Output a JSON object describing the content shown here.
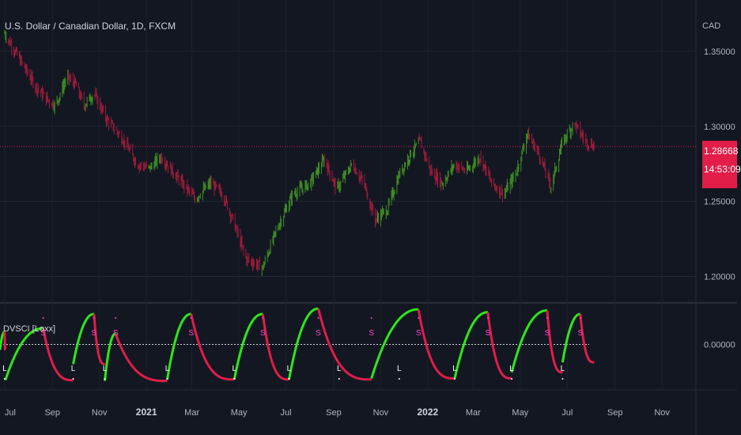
{
  "header": {
    "title": "U.S. Dollar / Canadian Dollar, 1D, FXCM",
    "currency": "CAD"
  },
  "indicator": {
    "title": "DVSCI [Loxx]"
  },
  "current_price": {
    "price": "1.28668",
    "countdown": "14:53:09"
  },
  "colors": {
    "bull": "#3f8f22",
    "bear": "#9c1c3a",
    "osc_bull": "#2ee61a",
    "osc_bear": "#e11d48",
    "signal_short": "#ff44cc",
    "signal_long": "#ffffff",
    "price_line": "#e11d48"
  },
  "chart_data": [
    {
      "type": "line",
      "title": "U.S. Dollar / Canadian Dollar, 1D, FXCM",
      "ylabel": "CAD",
      "ylim": [
        1.185,
        1.38
      ],
      "yticks": [
        "1.35000",
        "1.30000",
        "1.25000",
        "1.20000"
      ],
      "x_ticks": [
        {
          "label": "Jul",
          "bold": false
        },
        {
          "label": "Sep",
          "bold": false
        },
        {
          "label": "Nov",
          "bold": false
        },
        {
          "label": "2021",
          "bold": true
        },
        {
          "label": "Mar",
          "bold": false
        },
        {
          "label": "May",
          "bold": false
        },
        {
          "label": "Jul",
          "bold": false
        },
        {
          "label": "Sep",
          "bold": false
        },
        {
          "label": "Nov",
          "bold": false
        },
        {
          "label": "2022",
          "bold": true
        },
        {
          "label": "Mar",
          "bold": false
        },
        {
          "label": "May",
          "bold": false
        },
        {
          "label": "Jul",
          "bold": false
        },
        {
          "label": "Sep",
          "bold": false
        },
        {
          "label": "Nov",
          "bold": false
        }
      ],
      "price_path": [
        [
          "2020-07-01",
          1.362
        ],
        [
          "2020-07-20",
          1.345
        ],
        [
          "2020-08-10",
          1.327
        ],
        [
          "2020-08-25",
          1.318
        ],
        [
          "2020-09-05",
          1.314
        ],
        [
          "2020-09-20",
          1.333
        ],
        [
          "2020-10-01",
          1.328
        ],
        [
          "2020-10-12",
          1.314
        ],
        [
          "2020-10-25",
          1.322
        ],
        [
          "2020-11-10",
          1.305
        ],
        [
          "2020-12-01",
          1.292
        ],
        [
          "2020-12-20",
          1.275
        ],
        [
          "2021-01-05",
          1.272
        ],
        [
          "2021-01-20",
          1.28
        ],
        [
          "2021-02-10",
          1.266
        ],
        [
          "2021-03-05",
          1.252
        ],
        [
          "2021-03-25",
          1.262
        ],
        [
          "2021-04-10",
          1.255
        ],
        [
          "2021-04-25",
          1.235
        ],
        [
          "2021-05-10",
          1.212
        ],
        [
          "2021-06-01",
          1.206
        ],
        [
          "2021-06-18",
          1.23
        ],
        [
          "2021-07-10",
          1.255
        ],
        [
          "2021-08-01",
          1.262
        ],
        [
          "2021-08-20",
          1.278
        ],
        [
          "2021-09-05",
          1.258
        ],
        [
          "2021-09-25",
          1.275
        ],
        [
          "2021-10-10",
          1.262
        ],
        [
          "2021-10-25",
          1.238
        ],
        [
          "2021-11-10",
          1.245
        ],
        [
          "2021-11-25",
          1.268
        ],
        [
          "2021-12-10",
          1.282
        ],
        [
          "2021-12-22",
          1.29
        ],
        [
          "2022-01-05",
          1.27
        ],
        [
          "2022-01-20",
          1.262
        ],
        [
          "2022-02-05",
          1.275
        ],
        [
          "2022-02-20",
          1.27
        ],
        [
          "2022-03-10",
          1.28
        ],
        [
          "2022-03-25",
          1.262
        ],
        [
          "2022-04-10",
          1.255
        ],
        [
          "2022-04-25",
          1.268
        ],
        [
          "2022-05-10",
          1.295
        ],
        [
          "2022-05-25",
          1.282
        ],
        [
          "2022-06-10",
          1.26
        ],
        [
          "2022-06-25",
          1.29
        ],
        [
          "2022-07-10",
          1.302
        ],
        [
          "2022-07-25",
          1.29
        ],
        [
          "2022-08-05",
          1.287
        ]
      ],
      "last_price": 1.28668
    },
    {
      "type": "area",
      "title": "DVSCI [Loxx]",
      "ylim": [
        -1.25,
        1.05
      ],
      "yticks": [
        "0.00000"
      ],
      "zero_line": 0,
      "cycles": [
        {
          "start": "2020-06-25",
          "peak": "2020-07-01",
          "end": "2020-07-02",
          "peak_value": 0.35,
          "trough_value": -0.15
        },
        {
          "start": "2020-07-02",
          "peak": "2020-08-20",
          "end": "2020-09-28",
          "peak_value": 0.45,
          "trough_value": -1.0
        },
        {
          "start": "2020-09-28",
          "peak": "2020-10-25",
          "end": "2020-11-08",
          "peak_value": 0.85,
          "trough_value": -0.55
        },
        {
          "start": "2020-11-08",
          "peak": "2020-11-22",
          "end": "2021-01-28",
          "peak_value": 0.3,
          "trough_value": -1.02
        },
        {
          "start": "2021-01-28",
          "peak": "2021-02-28",
          "end": "2021-04-25",
          "peak_value": 0.85,
          "trough_value": -0.98
        },
        {
          "start": "2021-04-25",
          "peak": "2021-06-01",
          "end": "2021-07-05",
          "peak_value": 0.85,
          "trough_value": -0.98
        },
        {
          "start": "2021-07-05",
          "peak": "2021-08-12",
          "end": "2021-10-20",
          "peak_value": 1.0,
          "trough_value": -0.98
        },
        {
          "start": "2021-10-20",
          "peak": "2021-12-20",
          "end": "2022-02-05",
          "peak_value": 0.98,
          "trough_value": -0.95
        },
        {
          "start": "2022-02-05",
          "peak": "2022-03-20",
          "end": "2022-04-20",
          "peak_value": 0.9,
          "trough_value": -0.95
        },
        {
          "start": "2022-04-20",
          "peak": "2022-06-05",
          "end": "2022-06-25",
          "peak_value": 0.95,
          "trough_value": -0.78
        },
        {
          "start": "2022-06-25",
          "peak": "2022-07-18",
          "end": "2022-08-05",
          "peak_value": 0.85,
          "trough_value": -0.5
        }
      ],
      "signals": [
        {
          "date": "2020-07-01",
          "type": "L"
        },
        {
          "date": "2020-08-20",
          "type": "S"
        },
        {
          "date": "2020-09-28",
          "type": "L"
        },
        {
          "date": "2020-10-25",
          "type": "S"
        },
        {
          "date": "2020-11-08",
          "type": "L"
        },
        {
          "date": "2020-11-22",
          "type": "S"
        },
        {
          "date": "2021-01-28",
          "type": "L"
        },
        {
          "date": "2021-02-28",
          "type": "S"
        },
        {
          "date": "2021-04-25",
          "type": "L"
        },
        {
          "date": "2021-06-01",
          "type": "S"
        },
        {
          "date": "2021-07-05",
          "type": "L"
        },
        {
          "date": "2021-08-12",
          "type": "S"
        },
        {
          "date": "2021-09-08",
          "type": "L"
        },
        {
          "date": "2021-10-20",
          "type": "S"
        },
        {
          "date": "2021-11-25",
          "type": "L"
        },
        {
          "date": "2021-12-20",
          "type": "S"
        },
        {
          "date": "2022-02-05",
          "type": "L"
        },
        {
          "date": "2022-03-20",
          "type": "S"
        },
        {
          "date": "2022-04-20",
          "type": "L"
        },
        {
          "date": "2022-06-05",
          "type": "S"
        },
        {
          "date": "2022-06-25",
          "type": "L"
        },
        {
          "date": "2022-07-18",
          "type": "S"
        }
      ]
    }
  ]
}
